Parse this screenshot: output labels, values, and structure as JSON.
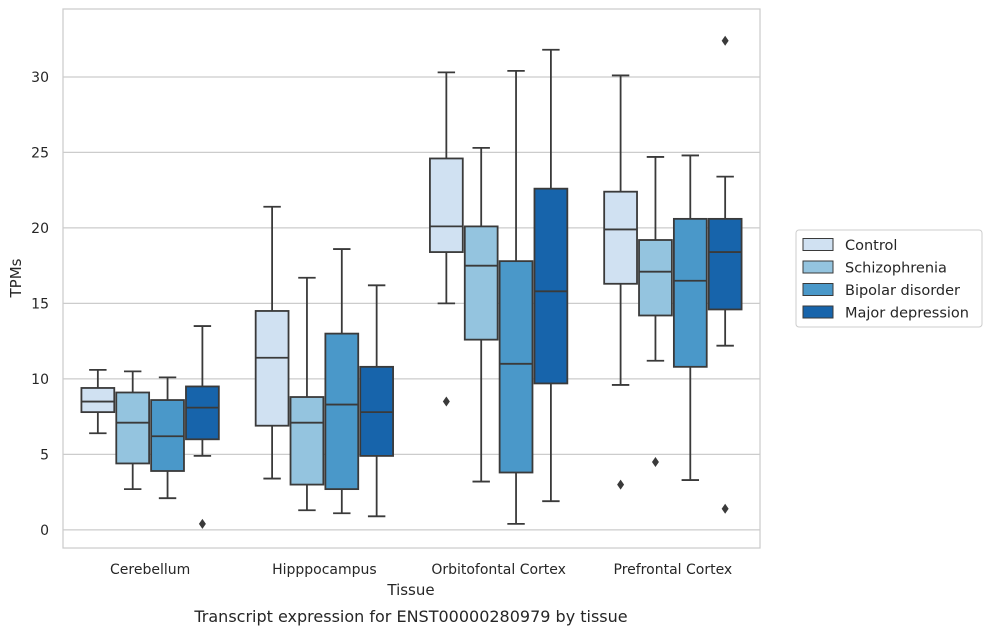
{
  "caption": "Transcript expression for ENST00000280979 by tissue",
  "chart_data": {
    "type": "box",
    "xlabel": "Tissue",
    "ylabel": "TPMs",
    "ylim": [
      -1.2,
      34.5
    ],
    "yticks": [
      0,
      5,
      10,
      15,
      20,
      25,
      30
    ],
    "grid": "horizontal",
    "legend_position": "right",
    "categories": [
      "Cerebellum",
      "Hipppocampus",
      "Orbitofontal Cortex",
      "Prefrontal Cortex"
    ],
    "series": [
      {
        "name": "Control",
        "color": "#d0e1f2",
        "boxes": [
          {
            "whislo": 6.4,
            "q1": 7.8,
            "med": 8.5,
            "q3": 9.4,
            "whishi": 10.6,
            "fliers": []
          },
          {
            "whislo": 3.4,
            "q1": 6.9,
            "med": 11.4,
            "q3": 14.5,
            "whishi": 21.4,
            "fliers": []
          },
          {
            "whislo": 15.0,
            "q1": 18.4,
            "med": 20.1,
            "q3": 24.6,
            "whishi": 30.3,
            "fliers": [
              8.5
            ]
          },
          {
            "whislo": 9.6,
            "q1": 16.3,
            "med": 19.9,
            "q3": 22.4,
            "whishi": 30.1,
            "fliers": [
              3.0
            ]
          }
        ]
      },
      {
        "name": "Schizophrenia",
        "color": "#94c4df",
        "boxes": [
          {
            "whislo": 2.7,
            "q1": 4.4,
            "med": 7.1,
            "q3": 9.1,
            "whishi": 10.5,
            "fliers": []
          },
          {
            "whislo": 1.3,
            "q1": 3.0,
            "med": 7.1,
            "q3": 8.8,
            "whishi": 16.7,
            "fliers": []
          },
          {
            "whislo": 3.2,
            "q1": 12.6,
            "med": 17.5,
            "q3": 20.1,
            "whishi": 25.3,
            "fliers": []
          },
          {
            "whislo": 11.2,
            "q1": 14.2,
            "med": 17.1,
            "q3": 19.2,
            "whishi": 24.7,
            "fliers": [
              4.5
            ]
          }
        ]
      },
      {
        "name": "Bipolar disorder",
        "color": "#4a98c9",
        "boxes": [
          {
            "whislo": 2.1,
            "q1": 3.9,
            "med": 6.2,
            "q3": 8.6,
            "whishi": 10.1,
            "fliers": []
          },
          {
            "whislo": 1.1,
            "q1": 2.7,
            "med": 8.3,
            "q3": 13.0,
            "whishi": 18.6,
            "fliers": []
          },
          {
            "whislo": 0.4,
            "q1": 3.8,
            "med": 11.0,
            "q3": 17.8,
            "whishi": 30.4,
            "fliers": []
          },
          {
            "whislo": 3.3,
            "q1": 10.8,
            "med": 16.5,
            "q3": 20.6,
            "whishi": 24.8,
            "fliers": []
          }
        ]
      },
      {
        "name": "Major depression",
        "color": "#1764ab",
        "boxes": [
          {
            "whislo": 4.9,
            "q1": 6.0,
            "med": 8.1,
            "q3": 9.5,
            "whishi": 13.5,
            "fliers": [
              0.4
            ]
          },
          {
            "whislo": 0.9,
            "q1": 4.9,
            "med": 7.8,
            "q3": 10.8,
            "whishi": 16.2,
            "fliers": []
          },
          {
            "whislo": 1.9,
            "q1": 9.7,
            "med": 15.8,
            "q3": 22.6,
            "whishi": 31.8,
            "fliers": []
          },
          {
            "whislo": 12.2,
            "q1": 14.6,
            "med": 18.4,
            "q3": 20.6,
            "whishi": 23.4,
            "fliers": [
              32.4,
              1.4
            ]
          }
        ]
      }
    ]
  }
}
